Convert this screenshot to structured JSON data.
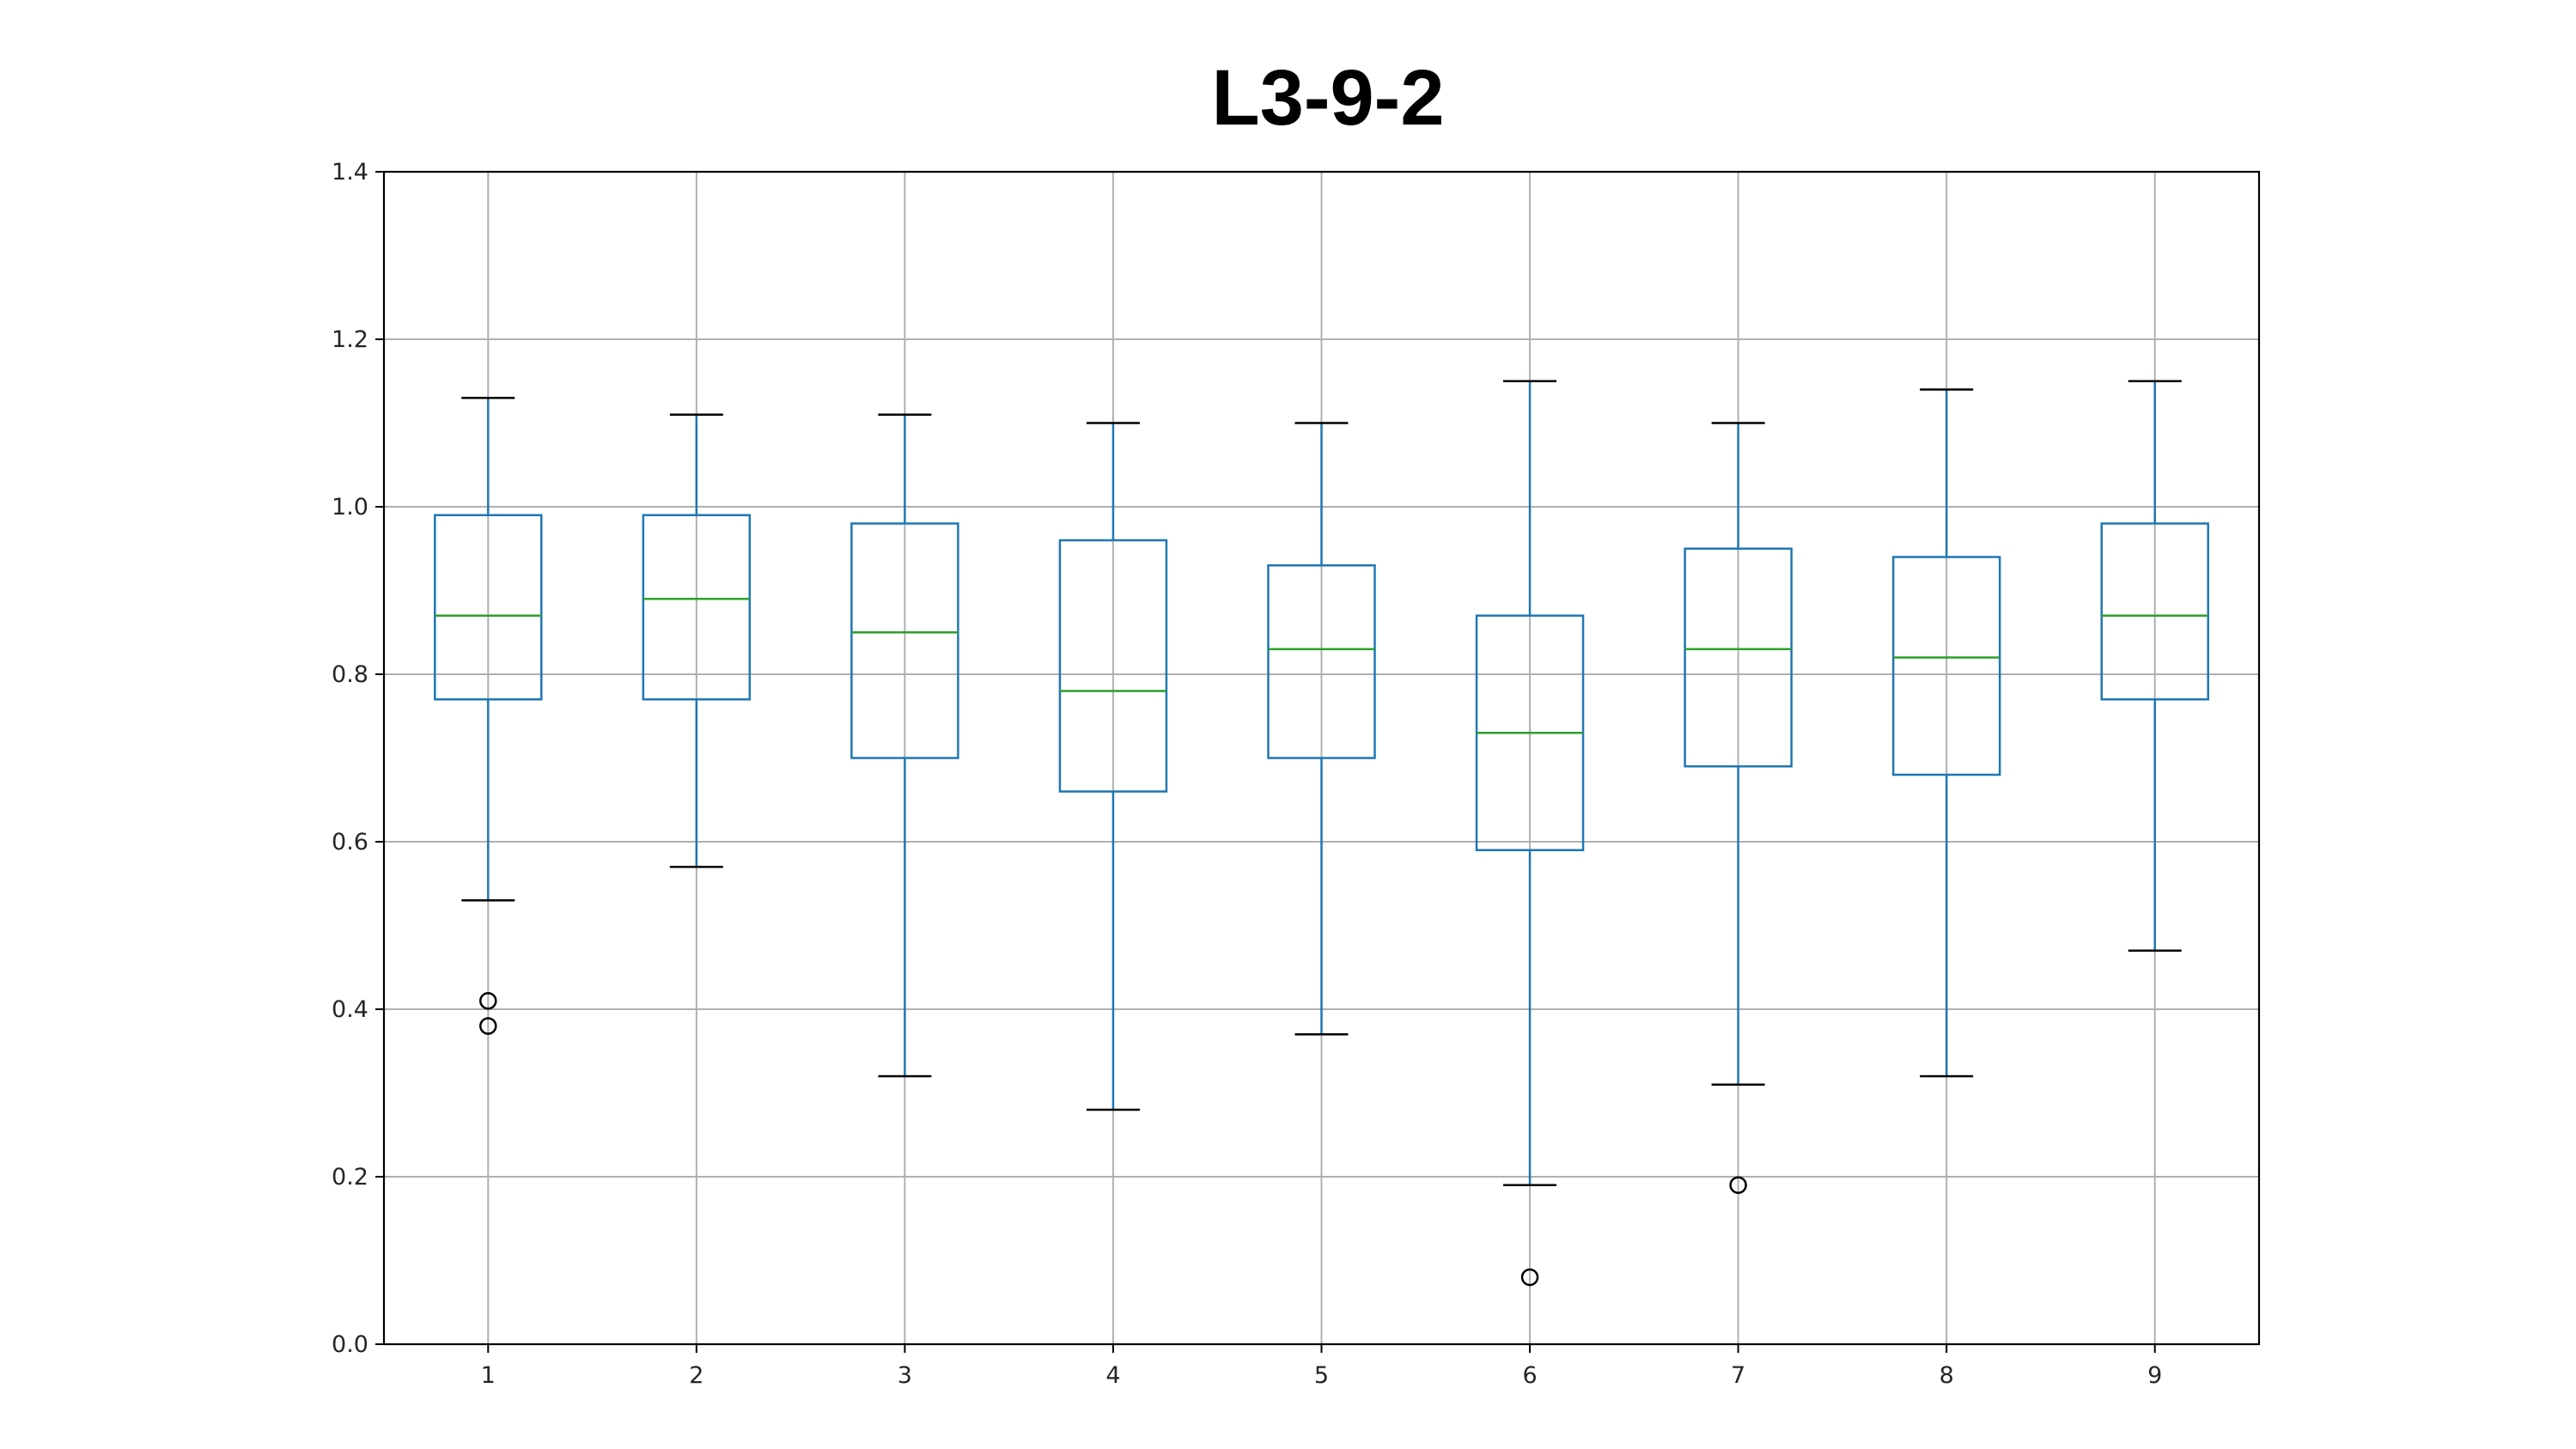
{
  "chart_data": {
    "type": "box",
    "title": "L3-9-2",
    "xlabel": "",
    "ylabel": "",
    "categories": [
      "1",
      "2",
      "3",
      "4",
      "5",
      "6",
      "7",
      "8",
      "9"
    ],
    "ylim": [
      0.0,
      1.4
    ],
    "yticks": [
      "0.0",
      "0.2",
      "0.4",
      "0.6",
      "0.8",
      "1.0",
      "1.2",
      "1.4"
    ],
    "grid": true,
    "boxes": [
      {
        "category": "1",
        "whisker_low": 0.53,
        "q1": 0.77,
        "median": 0.87,
        "q3": 0.99,
        "whisker_high": 1.13,
        "outliers": [
          0.41,
          0.38
        ]
      },
      {
        "category": "2",
        "whisker_low": 0.57,
        "q1": 0.77,
        "median": 0.89,
        "q3": 0.99,
        "whisker_high": 1.11,
        "outliers": []
      },
      {
        "category": "3",
        "whisker_low": 0.32,
        "q1": 0.7,
        "median": 0.85,
        "q3": 0.98,
        "whisker_high": 1.11,
        "outliers": []
      },
      {
        "category": "4",
        "whisker_low": 0.28,
        "q1": 0.66,
        "median": 0.78,
        "q3": 0.96,
        "whisker_high": 1.1,
        "outliers": []
      },
      {
        "category": "5",
        "whisker_low": 0.37,
        "q1": 0.7,
        "median": 0.83,
        "q3": 0.93,
        "whisker_high": 1.1,
        "outliers": []
      },
      {
        "category": "6",
        "whisker_low": 0.19,
        "q1": 0.59,
        "median": 0.73,
        "q3": 0.87,
        "whisker_high": 1.15,
        "outliers": [
          0.08
        ]
      },
      {
        "category": "7",
        "whisker_low": 0.31,
        "q1": 0.69,
        "median": 0.83,
        "q3": 0.95,
        "whisker_high": 1.1,
        "outliers": [
          0.19
        ]
      },
      {
        "category": "8",
        "whisker_low": 0.32,
        "q1": 0.68,
        "median": 0.82,
        "q3": 0.94,
        "whisker_high": 1.14,
        "outliers": []
      },
      {
        "category": "9",
        "whisker_low": 0.47,
        "q1": 0.77,
        "median": 0.87,
        "q3": 0.98,
        "whisker_high": 1.15,
        "outliers": []
      }
    ],
    "colors": {
      "box": "#1f77b4",
      "median": "#2ca02c",
      "cap": "#000000",
      "outlier": "#000000",
      "grid": "#b0b0b0",
      "axes": "#000000"
    }
  }
}
